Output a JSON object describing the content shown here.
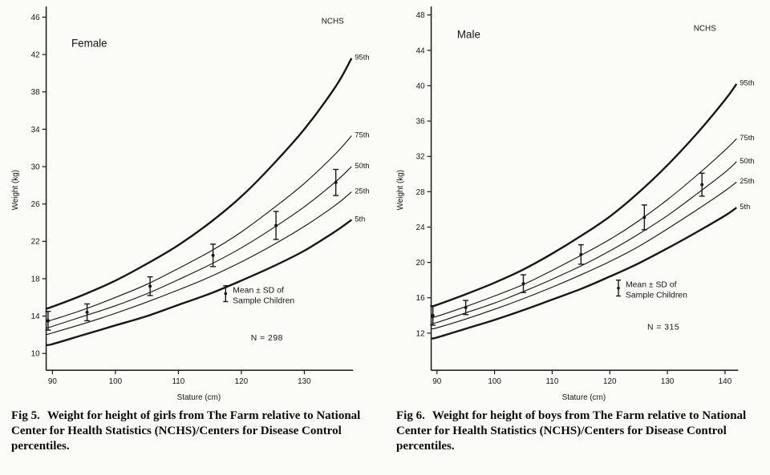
{
  "page": {
    "background": "#fbfbf8"
  },
  "colors": {
    "ink": "#161616"
  },
  "captions": [
    {
      "label": "Fig 5.",
      "text": "Weight for height of girls from The Farm relative to National Center for Health Statistics (NCHS)/Centers for Disease Control percentiles."
    },
    {
      "label": "Fig 6.",
      "text": "Weight for height of boys from The Farm relative to National Center for Health Statistics (NCHS)/Centers for Disease Control percentiles."
    }
  ],
  "chart_data": [
    {
      "type": "line",
      "panel_label": "Female",
      "corner_label": "NCHS",
      "xlabel": "Stature (cm)",
      "ylabel": "Weight (kg)",
      "xlim": [
        89,
        137.5
      ],
      "ylim": [
        8.2,
        46.8
      ],
      "xticks": [
        90,
        100,
        110,
        120,
        130
      ],
      "yticks": [
        10,
        14,
        18,
        22,
        26,
        30,
        34,
        38,
        42,
        46
      ],
      "x": [
        89,
        90,
        95,
        100,
        105,
        110,
        115,
        120,
        125,
        130,
        135,
        137.5
      ],
      "series": [
        {
          "name": "95th",
          "bold": true,
          "values": [
            14.8,
            15.0,
            16.3,
            17.8,
            19.6,
            21.6,
            24.0,
            26.8,
            30.2,
            34.0,
            38.6,
            41.6
          ]
        },
        {
          "name": "75th",
          "bold": false,
          "values": [
            13.4,
            13.6,
            14.7,
            16.0,
            17.4,
            19.1,
            20.9,
            23.0,
            25.5,
            28.2,
            31.4,
            33.3
          ]
        },
        {
          "name": "50th",
          "bold": false,
          "values": [
            12.7,
            12.9,
            14.0,
            15.1,
            16.4,
            17.9,
            19.5,
            21.3,
            23.4,
            25.7,
            28.4,
            30.0
          ]
        },
        {
          "name": "25th",
          "bold": false,
          "values": [
            12.0,
            12.2,
            13.2,
            14.3,
            15.5,
            16.8,
            18.2,
            19.8,
            21.6,
            23.6,
            25.9,
            27.3
          ]
        },
        {
          "name": "5th",
          "bold": true,
          "values": [
            10.9,
            11.0,
            12.0,
            13.0,
            14.0,
            15.2,
            16.4,
            17.8,
            19.3,
            21.0,
            23.1,
            24.3
          ]
        }
      ],
      "sample_points": {
        "label": "Mean ± SD of Sample Children",
        "x": [
          89.3,
          95.5,
          105.5,
          115.5,
          125.5,
          135
        ],
        "mean": [
          13.5,
          14.4,
          17.2,
          20.5,
          23.7,
          28.3
        ],
        "sd": [
          1.0,
          0.9,
          1.0,
          1.2,
          1.5,
          1.4
        ]
      },
      "legend": {
        "lines": [
          "Mean ± SD of",
          "Sample Children"
        ],
        "pos": [
          117.5,
          16.4
        ]
      },
      "n_label": {
        "text": "N = 298",
        "pos": [
          121.5,
          11.4
        ]
      },
      "panel_label_pos": [
        93,
        42.8
      ],
      "corner_label_pos": [
        134.5,
        45.3
      ]
    },
    {
      "type": "line",
      "panel_label": "Male",
      "corner_label": "NCHS",
      "xlabel": "Stature (cm)",
      "ylabel": "Weight (kg)",
      "xlim": [
        89,
        142
      ],
      "ylim": [
        7.8,
        48.6
      ],
      "xticks": [
        90,
        100,
        110,
        120,
        130,
        140
      ],
      "yticks": [
        12,
        16,
        20,
        24,
        28,
        32,
        36,
        40,
        44,
        48
      ],
      "x": [
        89,
        90,
        95,
        100,
        105,
        110,
        115,
        120,
        125,
        130,
        135,
        140,
        142
      ],
      "series": [
        {
          "name": "95th",
          "bold": true,
          "values": [
            15.0,
            15.2,
            16.4,
            17.7,
            19.2,
            21.0,
            23.0,
            25.2,
            27.9,
            31.0,
            34.5,
            38.4,
            40.2
          ]
        },
        {
          "name": "75th",
          "bold": false,
          "values": [
            13.8,
            13.9,
            15.0,
            16.2,
            17.5,
            19.1,
            20.8,
            22.6,
            24.7,
            27.1,
            29.8,
            32.7,
            34.0
          ]
        },
        {
          "name": "50th",
          "bold": false,
          "values": [
            13.1,
            13.2,
            14.3,
            15.4,
            16.7,
            18.1,
            19.6,
            21.3,
            23.2,
            25.3,
            27.7,
            30.2,
            31.4
          ]
        },
        {
          "name": "25th",
          "bold": false,
          "values": [
            12.5,
            12.6,
            13.6,
            14.7,
            15.9,
            17.2,
            18.6,
            20.1,
            21.8,
            23.8,
            25.9,
            28.1,
            29.1
          ]
        },
        {
          "name": "5th",
          "bold": true,
          "values": [
            11.4,
            11.5,
            12.5,
            13.5,
            14.6,
            15.8,
            17.0,
            18.4,
            19.9,
            21.6,
            23.4,
            25.3,
            26.2
          ]
        }
      ],
      "sample_points": {
        "label": "Mean ± SD of Sample Children",
        "x": [
          89.3,
          95,
          105,
          115,
          126,
          136
        ],
        "mean": [
          14.0,
          14.9,
          17.6,
          20.9,
          25.1,
          28.8
        ],
        "sd": [
          1.1,
          0.8,
          1.0,
          1.1,
          1.4,
          1.3
        ]
      },
      "legend": {
        "lines": [
          "Mean ± SD of",
          "Sample Children"
        ],
        "pos": [
          121.5,
          17.1
        ]
      },
      "n_label": {
        "text": "N = 315",
        "pos": [
          126.5,
          12.4
        ]
      },
      "panel_label_pos": [
        93.5,
        45.4
      ],
      "corner_label_pos": [
        136.5,
        46.2
      ]
    }
  ]
}
